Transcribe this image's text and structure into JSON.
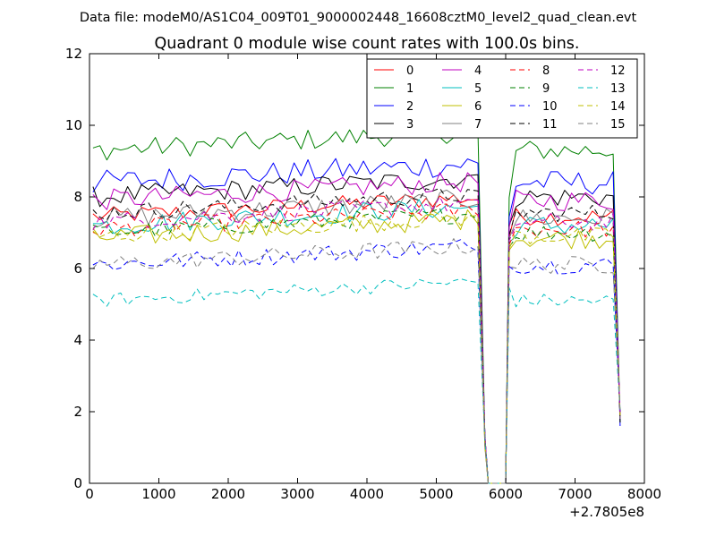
{
  "header": {
    "data_file": "Data file: modeM0/AS1C04_009T01_9000002448_16608cztM0_level2_quad_clean.evt"
  },
  "chart_data": {
    "type": "line",
    "title": "Quadrant 0 module wise count rates with 100.0s bins.",
    "xlabel": "",
    "ylabel": "",
    "x_offset_label": "+2.7805e8",
    "xlim": [
      0,
      8000
    ],
    "ylim": [
      0,
      12
    ],
    "x_ticks": [
      0,
      1000,
      2000,
      3000,
      4000,
      5000,
      6000,
      7000,
      8000
    ],
    "y_ticks": [
      0,
      2,
      4,
      6,
      8,
      10,
      12
    ],
    "legend_location": "top-right",
    "legend_columns": 4,
    "segments": [
      {
        "x_start": 50,
        "x_end": 5750,
        "step": 100
      },
      {
        "x_start": 6050,
        "x_end": 7650,
        "step": 100
      }
    ],
    "transition_points": {
      "drop1": [
        5600,
        5700,
        5750
      ],
      "rise2": [
        6050,
        6100
      ]
    },
    "series": [
      {
        "name": "0",
        "color": "#ff0000",
        "dash": "solid",
        "level": 7.45,
        "amp": 0.25,
        "end2": 1.8
      },
      {
        "name": "1",
        "color": "#008000",
        "dash": "solid",
        "level": 9.3,
        "amp": 0.3,
        "end2": 1.7
      },
      {
        "name": "2",
        "color": "#0000ff",
        "dash": "solid",
        "level": 8.4,
        "amp": 0.35,
        "end2": 1.6
      },
      {
        "name": "3",
        "color": "#000000",
        "dash": "solid",
        "level": 8.0,
        "amp": 0.3,
        "end2": 1.7
      },
      {
        "name": "4",
        "color": "#bf00bf",
        "dash": "solid",
        "level": 7.9,
        "amp": 0.3,
        "end2": 1.8
      },
      {
        "name": "5",
        "color": "#00bfbf",
        "dash": "solid",
        "level": 7.2,
        "amp": 0.3,
        "end2": 1.9
      },
      {
        "name": "6",
        "color": "#bfbf00",
        "dash": "solid",
        "level": 6.85,
        "amp": 0.3,
        "end2": 1.9
      },
      {
        "name": "7",
        "color": "#808080",
        "dash": "solid",
        "level": 7.4,
        "amp": 0.3,
        "end2": 1.8
      },
      {
        "name": "8",
        "color": "#ff0000",
        "dash": "dashed",
        "level": 7.1,
        "amp": 0.25,
        "end2": 1.9
      },
      {
        "name": "9",
        "color": "#008000",
        "dash": "dashed",
        "level": 7.0,
        "amp": 0.25,
        "end2": 1.9
      },
      {
        "name": "10",
        "color": "#0000ff",
        "dash": "dashed",
        "level": 6.1,
        "amp": 0.25,
        "end2": 2.0
      },
      {
        "name": "11",
        "color": "#000000",
        "dash": "dashed",
        "level": 7.55,
        "amp": 0.25,
        "end2": 1.8
      },
      {
        "name": "12",
        "color": "#bf00bf",
        "dash": "dashed",
        "level": 7.3,
        "amp": 0.25,
        "end2": 1.9
      },
      {
        "name": "13",
        "color": "#00bfbf",
        "dash": "dashed",
        "level": 5.1,
        "amp": 0.2,
        "end2": 2.0
      },
      {
        "name": "14",
        "color": "#bfbf00",
        "dash": "dashed",
        "level": 6.9,
        "amp": 0.25,
        "end2": 1.9
      },
      {
        "name": "15",
        "color": "#808080",
        "dash": "dashed",
        "level": 6.1,
        "amp": 0.25,
        "end2": 2.0
      }
    ]
  }
}
